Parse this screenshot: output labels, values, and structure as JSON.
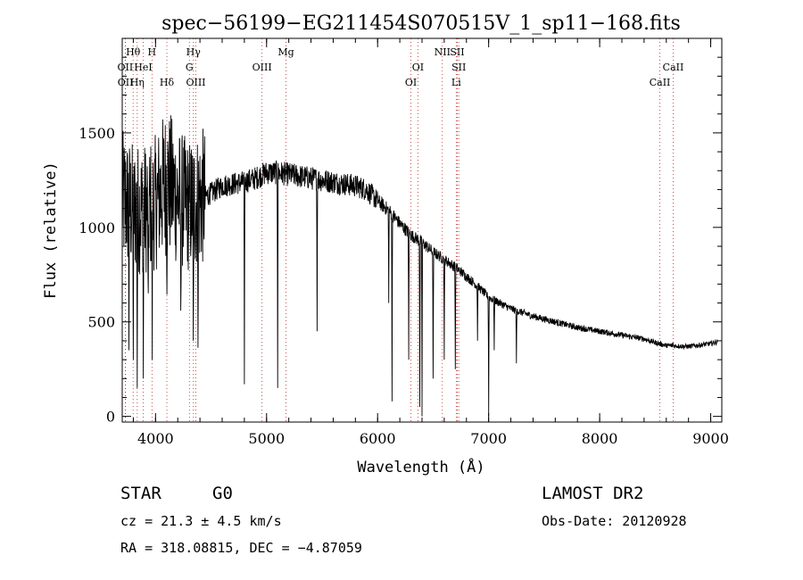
{
  "chart_data": {
    "type": "line",
    "title": "spec−56199−EG211454S070515V_1_sp11−168.fits",
    "xlabel": "Wavelength (Å)",
    "ylabel": "Flux (relative)",
    "xlim": [
      3700,
      9100
    ],
    "ylim": [
      -30,
      2000
    ],
    "xticks": [
      4000,
      5000,
      6000,
      7000,
      8000,
      9000
    ],
    "yticks": [
      0,
      500,
      1000,
      1500
    ],
    "continuum": [
      [
        3700,
        1150
      ],
      [
        3800,
        1100
      ],
      [
        3900,
        1100
      ],
      [
        4000,
        1130
      ],
      [
        4100,
        1250
      ],
      [
        4200,
        1160
      ],
      [
        4300,
        1110
      ],
      [
        4400,
        1150
      ],
      [
        4500,
        1180
      ],
      [
        4600,
        1220
      ],
      [
        4700,
        1230
      ],
      [
        4800,
        1240
      ],
      [
        4900,
        1260
      ],
      [
        5000,
        1290
      ],
      [
        5100,
        1290
      ],
      [
        5200,
        1280
      ],
      [
        5300,
        1270
      ],
      [
        5400,
        1260
      ],
      [
        5500,
        1250
      ],
      [
        5600,
        1240
      ],
      [
        5700,
        1230
      ],
      [
        5800,
        1220
      ],
      [
        5900,
        1200
      ],
      [
        6000,
        1140
      ],
      [
        6100,
        1090
      ],
      [
        6200,
        1020
      ],
      [
        6300,
        960
      ],
      [
        6400,
        920
      ],
      [
        6500,
        870
      ],
      [
        6600,
        830
      ],
      [
        6700,
        790
      ],
      [
        6800,
        740
      ],
      [
        6900,
        690
      ],
      [
        7000,
        630
      ],
      [
        7100,
        600
      ],
      [
        7200,
        570
      ],
      [
        7300,
        550
      ],
      [
        7400,
        530
      ],
      [
        7600,
        500
      ],
      [
        7800,
        470
      ],
      [
        8000,
        450
      ],
      [
        8200,
        430
      ],
      [
        8400,
        410
      ],
      [
        8500,
        390
      ],
      [
        8600,
        375
      ],
      [
        8800,
        370
      ],
      [
        9000,
        385
      ],
      [
        9100,
        400
      ]
    ],
    "absorption_features": [
      [
        3760,
        350
      ],
      [
        3800,
        300
      ],
      [
        3835,
        150
      ],
      [
        3890,
        200
      ],
      [
        3934,
        380
      ],
      [
        3970,
        300
      ],
      [
        4102,
        600
      ],
      [
        4227,
        500
      ],
      [
        4340,
        400
      ],
      [
        4383,
        300
      ],
      [
        4800,
        170
      ],
      [
        5100,
        150
      ],
      [
        5455,
        450
      ],
      [
        6100,
        600
      ],
      [
        6130,
        80
      ],
      [
        6280,
        300
      ],
      [
        6380,
        50
      ],
      [
        6400,
        0
      ],
      [
        6500,
        200
      ],
      [
        6600,
        300
      ],
      [
        6700,
        250
      ],
      [
        6900,
        400
      ],
      [
        7000,
        0
      ],
      [
        7050,
        350
      ],
      [
        7250,
        280
      ],
      [
        8500,
        400
      ],
      [
        8660,
        390
      ]
    ],
    "spectral_lines": [
      {
        "label": "Hθ",
        "x": 3798,
        "row": 0
      },
      {
        "label": "H",
        "x": 3968,
        "row": 0
      },
      {
        "label": "Hγ",
        "x": 4341,
        "row": 0
      },
      {
        "label": "Mg",
        "x": 5175,
        "row": 0
      },
      {
        "label": "NII",
        "x": 6583,
        "row": 0
      },
      {
        "label": "SII",
        "x": 6717,
        "row": 0
      },
      {
        "label": "OII",
        "x": 3727,
        "row": 1
      },
      {
        "label": "HeI",
        "x": 3889,
        "row": 1
      },
      {
        "label": "G",
        "x": 4305,
        "row": 1
      },
      {
        "label": "OIII",
        "x": 4959,
        "row": 1
      },
      {
        "label": "OI",
        "x": 6363,
        "row": 1
      },
      {
        "label": "SII",
        "x": 6731,
        "row": 1
      },
      {
        "label": "CaII",
        "x": 8662,
        "row": 1
      },
      {
        "label": "OII",
        "x": 3729,
        "row": 2
      },
      {
        "label": "Hη",
        "x": 3835,
        "row": 2
      },
      {
        "label": "Hδ",
        "x": 4102,
        "row": 2
      },
      {
        "label": "OIII",
        "x": 4363,
        "row": 2
      },
      {
        "label": "OI",
        "x": 6300,
        "row": 2
      },
      {
        "label": "Li",
        "x": 6708,
        "row": 2
      },
      {
        "label": "CaII",
        "x": 8542,
        "row": 2
      }
    ]
  },
  "info": {
    "object_class": "STAR",
    "subclass": "G0",
    "survey": "LAMOST DR2",
    "redshift": "cz = 21.3 ± 4.5 km/s",
    "obs_date": "Obs-Date: 20120928",
    "coords": "RA = 318.08815, DEC =  −4.87059"
  }
}
